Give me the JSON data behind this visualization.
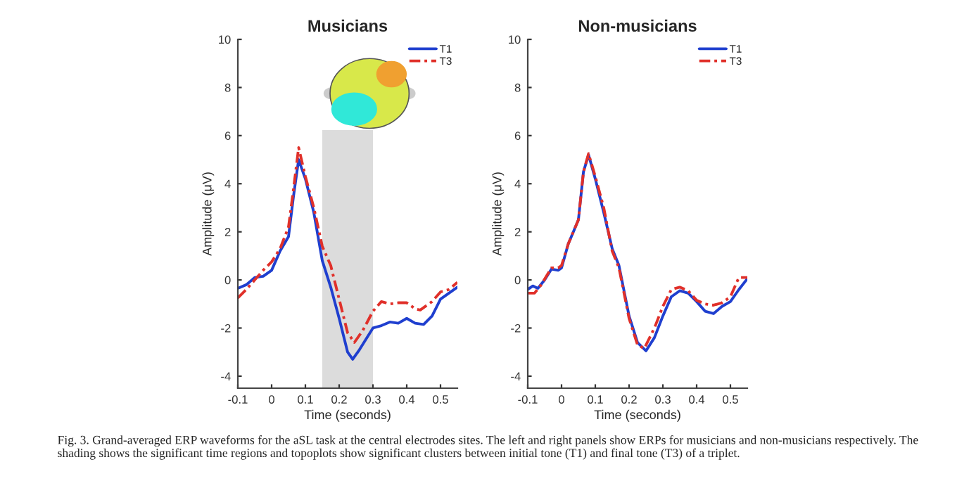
{
  "chart_data": [
    {
      "type": "line",
      "title": "Musicians",
      "xlabel": "Time (seconds)",
      "ylabel": "Amplitude (μV)",
      "xlim": [
        -0.1,
        0.55
      ],
      "ylim": [
        -4.5,
        10
      ],
      "xticks": [
        -0.1,
        0,
        0.1,
        0.2,
        0.3,
        0.4,
        0.5
      ],
      "yticks": [
        -4,
        -2,
        0,
        2,
        4,
        6,
        8,
        10
      ],
      "grid": false,
      "legend": "top right",
      "marker": "none",
      "bands": [
        {
          "axis": "x",
          "from": 0.15,
          "to": 0.3,
          "color": "#dcdcdc"
        }
      ],
      "series": [
        {
          "name": "T1",
          "color": "#1f3fcf",
          "line_style": "solid",
          "x": [
            -0.1,
            -0.075,
            -0.05,
            -0.025,
            0,
            0.025,
            0.05,
            0.065,
            0.08,
            0.1,
            0.125,
            0.15,
            0.175,
            0.2,
            0.225,
            0.24,
            0.26,
            0.3,
            0.325,
            0.35,
            0.375,
            0.4,
            0.425,
            0.45,
            0.475,
            0.5,
            0.55
          ],
          "values": [
            -0.35,
            -0.2,
            0.1,
            0.15,
            0.4,
            1.2,
            1.8,
            3.5,
            5.0,
            4.2,
            2.8,
            0.8,
            -0.3,
            -1.6,
            -3.0,
            -3.3,
            -2.9,
            -2.0,
            -1.9,
            -1.75,
            -1.8,
            -1.6,
            -1.8,
            -1.85,
            -1.5,
            -0.8,
            -0.3
          ]
        },
        {
          "name": "T3",
          "color": "#e0302a",
          "line_style": "dashed",
          "x": [
            -0.1,
            -0.075,
            -0.05,
            -0.025,
            0,
            0.025,
            0.05,
            0.065,
            0.08,
            0.1,
            0.125,
            0.15,
            0.175,
            0.2,
            0.225,
            0.245,
            0.27,
            0.3,
            0.325,
            0.35,
            0.375,
            0.4,
            0.425,
            0.44,
            0.475,
            0.5,
            0.525,
            0.55
          ],
          "values": [
            -0.75,
            -0.4,
            0.0,
            0.4,
            0.75,
            1.3,
            2.2,
            3.8,
            5.5,
            4.3,
            3.0,
            1.4,
            0.6,
            -0.8,
            -2.2,
            -2.6,
            -2.1,
            -1.3,
            -0.9,
            -1.0,
            -0.95,
            -0.95,
            -1.2,
            -1.25,
            -0.9,
            -0.5,
            -0.4,
            -0.1
          ]
        }
      ],
      "annotations": [
        "Fig. 3. Grand-averaged ERP waveforms for the aSL task at the central electrodes sites. The left and right panels show ERPs for musicians and non-musicians respectively. The shading shows the significant time regions and topoplots show significant clusters between initial tone (T1) and final tone (T3) of a triplet."
      ]
    },
    {
      "type": "line",
      "title": "Non-musicians",
      "xlabel": "Time (seconds)",
      "ylabel": "Amplitude (μV)",
      "xlim": [
        -0.1,
        0.55
      ],
      "ylim": [
        -4.5,
        10
      ],
      "xticks": [
        -0.1,
        0,
        0.1,
        0.2,
        0.3,
        0.4,
        0.5
      ],
      "yticks": [
        -4,
        -2,
        0,
        2,
        4,
        6,
        8,
        10
      ],
      "grid": false,
      "legend": "top right",
      "marker": "none",
      "series": [
        {
          "name": "T1",
          "color": "#1f3fcf",
          "line_style": "solid",
          "x": [
            -0.1,
            -0.085,
            -0.07,
            -0.05,
            -0.03,
            -0.01,
            0,
            0.02,
            0.035,
            0.05,
            0.065,
            0.08,
            0.1,
            0.125,
            0.15,
            0.17,
            0.2,
            0.225,
            0.25,
            0.275,
            0.3,
            0.325,
            0.35,
            0.375,
            0.4,
            0.425,
            0.45,
            0.475,
            0.5,
            0.525,
            0.55
          ],
          "values": [
            -0.4,
            -0.25,
            -0.35,
            0.0,
            0.45,
            0.4,
            0.5,
            1.5,
            2.0,
            2.5,
            4.5,
            5.2,
            4.2,
            2.8,
            1.3,
            0.6,
            -1.5,
            -2.6,
            -2.95,
            -2.4,
            -1.5,
            -0.7,
            -0.45,
            -0.55,
            -0.9,
            -1.3,
            -1.4,
            -1.1,
            -0.9,
            -0.4,
            0.05
          ]
        },
        {
          "name": "T3",
          "color": "#e0302a",
          "line_style": "dashed",
          "x": [
            -0.1,
            -0.08,
            -0.06,
            -0.03,
            -0.01,
            0,
            0.02,
            0.035,
            0.05,
            0.065,
            0.08,
            0.1,
            0.125,
            0.15,
            0.17,
            0.2,
            0.225,
            0.245,
            0.275,
            0.3,
            0.325,
            0.35,
            0.375,
            0.4,
            0.425,
            0.45,
            0.475,
            0.5,
            0.525,
            0.55
          ],
          "values": [
            -0.55,
            -0.55,
            -0.2,
            0.5,
            0.5,
            0.6,
            1.5,
            2.0,
            2.5,
            4.5,
            5.25,
            4.3,
            3.0,
            1.2,
            0.5,
            -1.6,
            -2.7,
            -2.85,
            -2.0,
            -1.1,
            -0.4,
            -0.3,
            -0.45,
            -0.85,
            -1.0,
            -1.05,
            -0.95,
            -0.7,
            0.1,
            0.1
          ]
        }
      ]
    }
  ]
}
